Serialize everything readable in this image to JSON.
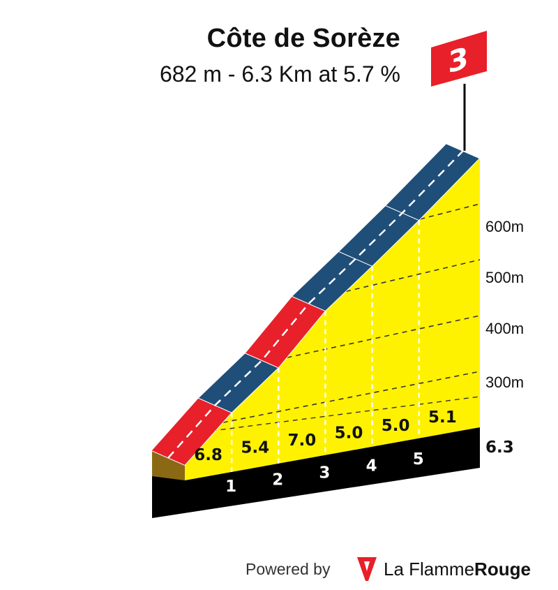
{
  "title": "Côte de Sorèze",
  "subtitle": "682 m - 6.3 Km at 5.7 %",
  "category_flag": "3",
  "footer": {
    "powered_by": "Powered by",
    "brand_light": "La Flamme",
    "brand_bold": "Rouge"
  },
  "colors": {
    "fill": "#FFF200",
    "base": "#000000",
    "start_wall": "#8B6914",
    "blue": "#1F4E79",
    "red": "#E8202A",
    "flag": "#E8202A"
  },
  "chart_data": {
    "type": "area",
    "title": "Côte de Sorèze",
    "subtitle": "682 m - 6.3 Km at 5.7 %",
    "xlabel": "",
    "ylabel": "",
    "distance_km": 6.3,
    "summit_altitude_m": 682,
    "average_gradient_pct": 5.7,
    "km_markers": [
      "1",
      "2",
      "3",
      "4",
      "5"
    ],
    "end_label": "6.3",
    "y_ticks": [
      "300m",
      "400m",
      "500m",
      "600m"
    ],
    "segments": [
      {
        "km_start": 0,
        "km_end": 1,
        "gradient": "6.8",
        "band": "red"
      },
      {
        "km_start": 1,
        "km_end": 2,
        "gradient": "5.4",
        "band": "blue"
      },
      {
        "km_start": 2,
        "km_end": 3,
        "gradient": "7.0",
        "band": "red"
      },
      {
        "km_start": 3,
        "km_end": 4,
        "gradient": "5.0",
        "band": "blue"
      },
      {
        "km_start": 4,
        "km_end": 5,
        "gradient": "5.0",
        "band": "blue"
      },
      {
        "km_start": 5,
        "km_end": 6.3,
        "gradient": "5.1",
        "band": "blue"
      }
    ],
    "grid": true
  }
}
